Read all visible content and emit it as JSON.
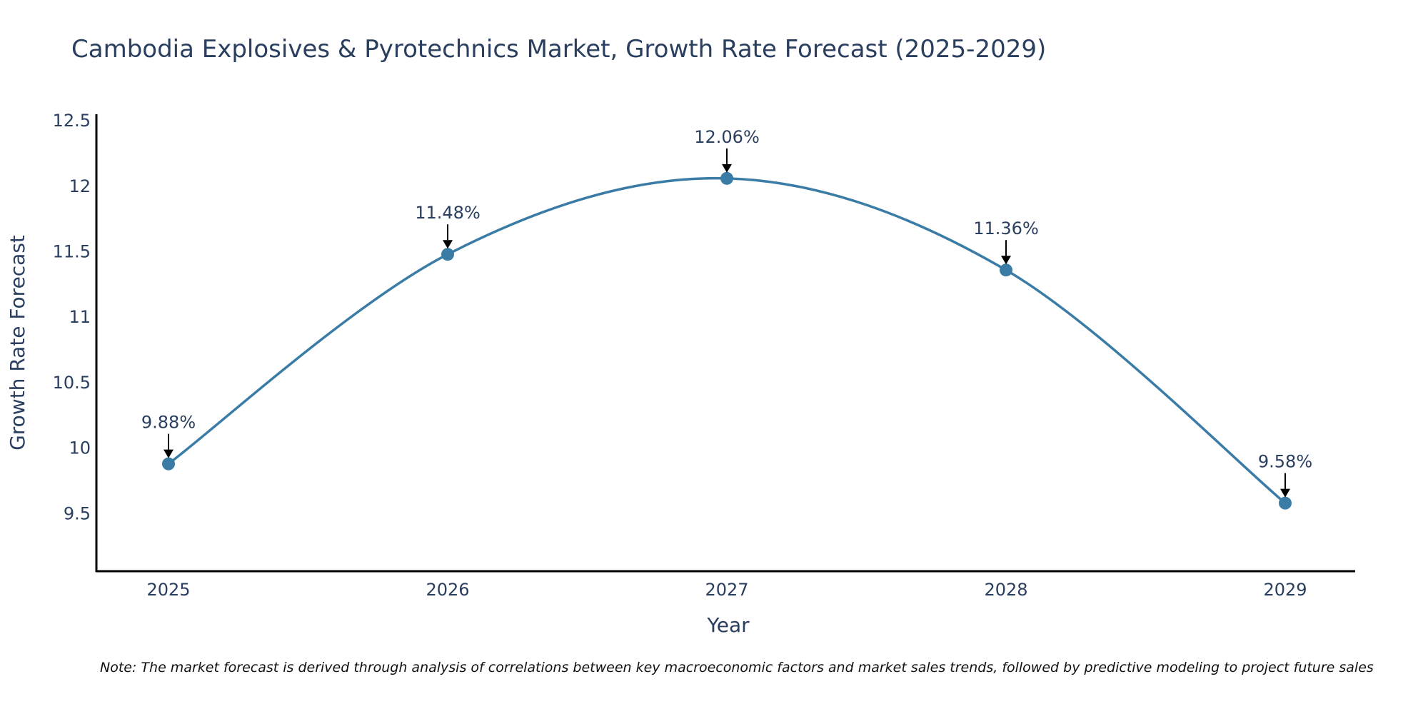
{
  "chart_data": {
    "type": "line",
    "title": "Cambodia Explosives & Pyrotechnics Market, Growth Rate Forecast (2025-2029)",
    "xlabel": "Year",
    "ylabel": "Growth Rate Forecast",
    "categories": [
      "2025",
      "2026",
      "2027",
      "2028",
      "2029"
    ],
    "series": [
      {
        "name": "Growth Rate Forecast",
        "values": [
          9.88,
          11.48,
          12.06,
          11.36,
          9.58
        ],
        "labels": [
          "9.88%",
          "11.48%",
          "12.06%",
          "11.36%",
          "9.58%"
        ],
        "color": "#3a7ca5"
      }
    ],
    "yticks": [
      9.5,
      10,
      10.5,
      11,
      11.5,
      12,
      12.5
    ],
    "ytick_labels": [
      "9.5",
      "10",
      "10.5",
      "11",
      "11.5",
      "12",
      "12.5"
    ],
    "ylim": [
      9.06,
      12.55
    ],
    "grid": false,
    "line_shape": "spline",
    "note": "Note: The market forecast is derived through analysis of correlations between key macroeconomic factors and market sales trends, followed by predictive modeling to project future sales"
  },
  "colors": {
    "line": "#3a7ca5",
    "axis": "#000000",
    "text": "#2a3f5f"
  }
}
